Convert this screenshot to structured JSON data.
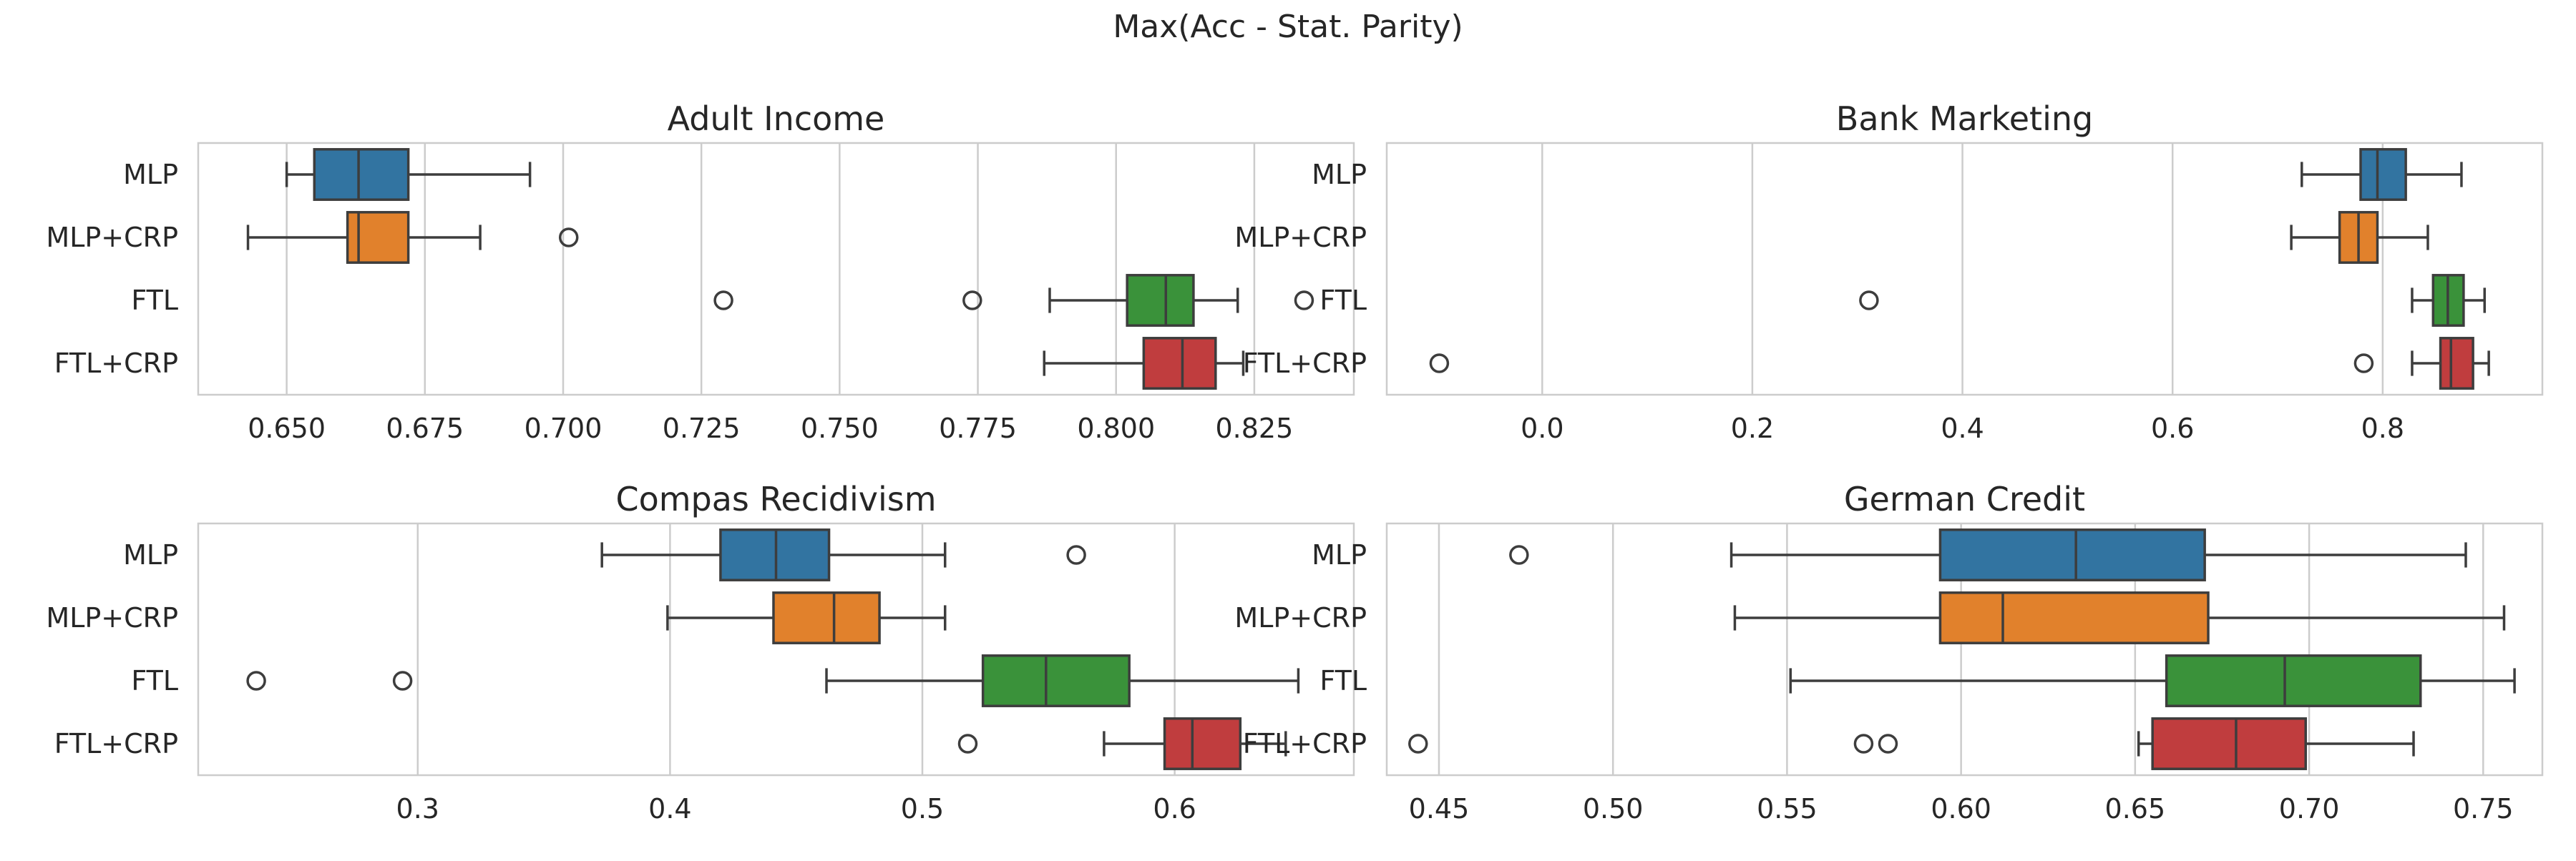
{
  "figure": {
    "title": "Max(Acc - Stat. Parity)"
  },
  "colors": {
    "MLP": "#3274a1",
    "MLP+CRP": "#e1812c",
    "FTL": "#3a923a",
    "FTL+CRP": "#c03d3e",
    "grid": "#cccccc",
    "frame": "#cccccc",
    "line": "#3d3d3d"
  },
  "chart_data": [
    {
      "type": "box",
      "title": "Adult Income",
      "xlim": [
        0.634,
        0.843
      ],
      "xticks": [
        0.65,
        0.675,
        0.7,
        0.725,
        0.75,
        0.775,
        0.8,
        0.825
      ],
      "xtick_labels": [
        "0.650",
        "0.675",
        "0.700",
        "0.725",
        "0.750",
        "0.775",
        "0.800",
        "0.825"
      ],
      "categories": [
        "MLP",
        "MLP+CRP",
        "FTL",
        "FTL+CRP"
      ],
      "boxes": [
        {
          "name": "MLP",
          "whislo": 0.65,
          "q1": 0.655,
          "med": 0.663,
          "q3": 0.672,
          "whishi": 0.694,
          "fliers": []
        },
        {
          "name": "MLP+CRP",
          "whislo": 0.643,
          "q1": 0.661,
          "med": 0.663,
          "q3": 0.672,
          "whishi": 0.685,
          "fliers": [
            0.701
          ]
        },
        {
          "name": "FTL",
          "whislo": 0.788,
          "q1": 0.802,
          "med": 0.809,
          "q3": 0.814,
          "whishi": 0.822,
          "fliers": [
            0.729,
            0.774,
            0.834
          ]
        },
        {
          "name": "FTL+CRP",
          "whislo": 0.787,
          "q1": 0.805,
          "med": 0.812,
          "q3": 0.818,
          "whishi": 0.823,
          "fliers": []
        }
      ]
    },
    {
      "type": "box",
      "title": "Bank Marketing",
      "xlim": [
        -0.148,
        0.952
      ],
      "xticks": [
        0.0,
        0.2,
        0.4,
        0.6,
        0.8
      ],
      "xtick_labels": [
        "0.0",
        "0.2",
        "0.4",
        "0.6",
        "0.8"
      ],
      "categories": [
        "MLP",
        "MLP+CRP",
        "FTL",
        "FTL+CRP"
      ],
      "boxes": [
        {
          "name": "MLP",
          "whislo": 0.723,
          "q1": 0.779,
          "med": 0.795,
          "q3": 0.822,
          "whishi": 0.875,
          "fliers": []
        },
        {
          "name": "MLP+CRP",
          "whislo": 0.713,
          "q1": 0.759,
          "med": 0.777,
          "q3": 0.795,
          "whishi": 0.843,
          "fliers": []
        },
        {
          "name": "FTL",
          "whislo": 0.828,
          "q1": 0.848,
          "med": 0.862,
          "q3": 0.877,
          "whishi": 0.897,
          "fliers": [
            0.311
          ]
        },
        {
          "name": "FTL+CRP",
          "whislo": 0.828,
          "q1": 0.855,
          "med": 0.865,
          "q3": 0.886,
          "whishi": 0.901,
          "fliers": [
            -0.098,
            0.782
          ]
        }
      ]
    },
    {
      "type": "box",
      "title": "Compas Recidivism",
      "xlim": [
        0.213,
        0.671
      ],
      "xticks": [
        0.3,
        0.4,
        0.5,
        0.6
      ],
      "xtick_labels": [
        "0.3",
        "0.4",
        "0.5",
        "0.6"
      ],
      "categories": [
        "MLP",
        "MLP+CRP",
        "FTL",
        "FTL+CRP"
      ],
      "boxes": [
        {
          "name": "MLP",
          "whislo": 0.373,
          "q1": 0.42,
          "med": 0.442,
          "q3": 0.463,
          "whishi": 0.509,
          "fliers": [
            0.561
          ]
        },
        {
          "name": "MLP+CRP",
          "whislo": 0.399,
          "q1": 0.441,
          "med": 0.465,
          "q3": 0.483,
          "whishi": 0.509,
          "fliers": []
        },
        {
          "name": "FTL",
          "whislo": 0.462,
          "q1": 0.524,
          "med": 0.549,
          "q3": 0.582,
          "whishi": 0.649,
          "fliers": [
            0.236,
            0.294
          ]
        },
        {
          "name": "FTL+CRP",
          "whislo": 0.572,
          "q1": 0.596,
          "med": 0.607,
          "q3": 0.626,
          "whishi": 0.644,
          "fliers": [
            0.518
          ]
        }
      ]
    },
    {
      "type": "box",
      "title": "German Credit",
      "xlim": [
        0.435,
        0.767
      ],
      "xticks": [
        0.45,
        0.5,
        0.55,
        0.6,
        0.65,
        0.7,
        0.75
      ],
      "xtick_labels": [
        "0.45",
        "0.50",
        "0.55",
        "0.60",
        "0.65",
        "0.70",
        "0.75"
      ],
      "categories": [
        "MLP",
        "MLP+CRP",
        "FTL",
        "FTL+CRP"
      ],
      "boxes": [
        {
          "name": "MLP",
          "whislo": 0.534,
          "q1": 0.594,
          "med": 0.633,
          "q3": 0.67,
          "whishi": 0.745,
          "fliers": [
            0.473
          ]
        },
        {
          "name": "MLP+CRP",
          "whislo": 0.535,
          "q1": 0.594,
          "med": 0.612,
          "q3": 0.671,
          "whishi": 0.756,
          "fliers": []
        },
        {
          "name": "FTL",
          "whislo": 0.551,
          "q1": 0.659,
          "med": 0.693,
          "q3": 0.732,
          "whishi": 0.759,
          "fliers": []
        },
        {
          "name": "FTL+CRP",
          "whislo": 0.651,
          "q1": 0.655,
          "med": 0.679,
          "q3": 0.699,
          "whishi": 0.73,
          "fliers": [
            0.444,
            0.572,
            0.579
          ]
        }
      ]
    }
  ]
}
